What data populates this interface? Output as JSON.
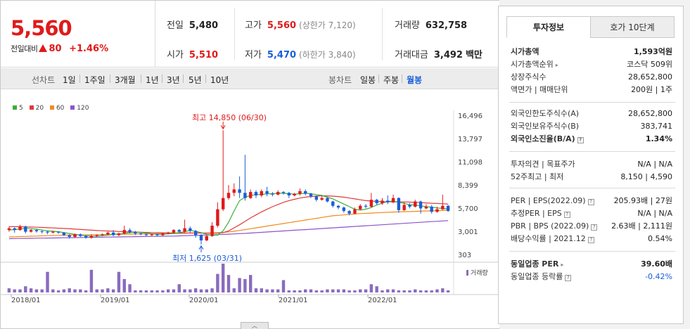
{
  "price": {
    "current": "5,560",
    "change_label": "전일대비",
    "change_value": "80",
    "change_pct": "+1.46%"
  },
  "stats": {
    "prev": {
      "label": "전일",
      "value": "5,480"
    },
    "high": {
      "label": "고가",
      "value": "5,560",
      "sub": "(상한가 7,120)"
    },
    "volume": {
      "label": "거래량",
      "value": "632,758"
    },
    "open": {
      "label": "시가",
      "value": "5,510"
    },
    "low": {
      "label": "저가",
      "value": "5,470",
      "sub": "(하한가 3,840)"
    },
    "amount": {
      "label": "거래대금",
      "value": "3,492",
      "unit": "백만"
    }
  },
  "period_bar": {
    "line_label": "선차트",
    "line_items": [
      "1일",
      "1주일",
      "3개월",
      "1년",
      "3년",
      "5년",
      "10년"
    ],
    "candle_label": "봉차트",
    "candle_items": [
      "일봉",
      "주봉",
      "월봉"
    ],
    "active_candle": "월봉"
  },
  "chart_data": {
    "type": "candlestick",
    "legend": [
      "5",
      "20",
      "60",
      "120"
    ],
    "legend_colors": [
      "#3aae3a",
      "#e03a3a",
      "#f08a1e",
      "#8a55cc"
    ],
    "y_ticks": [
      "16,496",
      "13,797",
      "11,098",
      "8,399",
      "5,700",
      "3,001",
      "303"
    ],
    "x_ticks": [
      "2018/01",
      "2019/01",
      "2020/01",
      "2021/01",
      "2022/01"
    ],
    "max_annotation": "최고 14,850 (06/30)",
    "min_annotation": "최저 1,625 (03/31)",
    "volume_legend": "거래량",
    "candles": [
      [
        3300,
        3500,
        3700,
        3100
      ],
      [
        3500,
        3300,
        3600,
        3000
      ],
      [
        3300,
        3700,
        3900,
        3200
      ],
      [
        3700,
        3100,
        3800,
        2900
      ],
      [
        3100,
        3300,
        3400,
        3000
      ],
      [
        3300,
        3150,
        3400,
        3000
      ],
      [
        3150,
        3100,
        3300,
        2900
      ],
      [
        3100,
        3000,
        3200,
        2800
      ],
      [
        3000,
        3100,
        3200,
        2900
      ],
      [
        3100,
        3000,
        3150,
        2850
      ],
      [
        3000,
        2700,
        3050,
        2600
      ],
      [
        2700,
        2500,
        2800,
        2300
      ],
      [
        2500,
        2800,
        2900,
        2400
      ],
      [
        2800,
        2600,
        2900,
        2500
      ],
      [
        2600,
        2400,
        2700,
        2300
      ],
      [
        2400,
        2600,
        2800,
        2300
      ],
      [
        2600,
        2700,
        2800,
        2500
      ],
      [
        2700,
        2800,
        2900,
        2600
      ],
      [
        2800,
        3000,
        3100,
        2700
      ],
      [
        3000,
        2700,
        3300,
        2600
      ],
      [
        2700,
        2900,
        3000,
        2600
      ],
      [
        2900,
        3300,
        3800,
        2800
      ],
      [
        3300,
        3100,
        3500,
        2900
      ],
      [
        3100,
        2900,
        3200,
        2700
      ],
      [
        2900,
        2800,
        3000,
        2700
      ],
      [
        2800,
        2700,
        2900,
        2600
      ],
      [
        2700,
        2800,
        2900,
        2600
      ],
      [
        2800,
        2700,
        2900,
        2600
      ],
      [
        2700,
        2900,
        3000,
        2600
      ],
      [
        2900,
        3000,
        3100,
        2800
      ],
      [
        3000,
        3300,
        3400,
        2900
      ],
      [
        3300,
        3100,
        3400,
        3000
      ],
      [
        3100,
        3500,
        4500,
        3000
      ],
      [
        3500,
        3200,
        3700,
        3000
      ],
      [
        3200,
        2700,
        3300,
        2400
      ],
      [
        2700,
        2100,
        2800,
        1625
      ],
      [
        2100,
        2600,
        2700,
        2000
      ],
      [
        2600,
        3800,
        4200,
        2500
      ],
      [
        3800,
        5700,
        6500,
        3600
      ],
      [
        5700,
        7000,
        14850,
        5500
      ],
      [
        7000,
        7600,
        8500,
        6800
      ],
      [
        7600,
        8000,
        8700,
        7200
      ],
      [
        8000,
        7600,
        9500,
        7000
      ],
      [
        7600,
        7000,
        12000,
        6700
      ],
      [
        7000,
        7700,
        8000,
        6900
      ],
      [
        7700,
        7300,
        7900,
        7000
      ],
      [
        7300,
        7800,
        8000,
        7100
      ],
      [
        7800,
        7500,
        8300,
        7200
      ],
      [
        7500,
        7400,
        7700,
        7200
      ],
      [
        7400,
        7700,
        7900,
        7300
      ],
      [
        7700,
        7600,
        7800,
        7400
      ],
      [
        7600,
        7300,
        7700,
        7000
      ],
      [
        7300,
        7500,
        7600,
        7200
      ],
      [
        7500,
        7800,
        8100,
        7300
      ],
      [
        7800,
        7500,
        8000,
        7300
      ],
      [
        7500,
        7200,
        7600,
        7000
      ],
      [
        7200,
        6800,
        7300,
        6600
      ],
      [
        6800,
        7000,
        7200,
        6700
      ],
      [
        7000,
        6600,
        7100,
        6500
      ],
      [
        6600,
        6100,
        6700,
        5900
      ],
      [
        6100,
        5900,
        6200,
        5700
      ],
      [
        5900,
        5500,
        6000,
        5300
      ],
      [
        5500,
        5200,
        5600,
        5000
      ],
      [
        5200,
        5700,
        5900,
        5100
      ],
      [
        5700,
        6100,
        6300,
        5600
      ],
      [
        6100,
        6000,
        6300,
        5800
      ],
      [
        6000,
        6800,
        7600,
        5900
      ],
      [
        6800,
        6400,
        6900,
        6200
      ],
      [
        6400,
        6700,
        7000,
        6200
      ],
      [
        6700,
        6500,
        7300,
        6300
      ],
      [
        6500,
        7000,
        7400,
        6400
      ],
      [
        7000,
        5600,
        7100,
        5300
      ],
      [
        5600,
        6200,
        6500,
        5500
      ],
      [
        6200,
        6000,
        6400,
        5800
      ],
      [
        6000,
        6600,
        6800,
        5900
      ],
      [
        6600,
        5800,
        6700,
        5200
      ],
      [
        5800,
        6000,
        6300,
        5700
      ],
      [
        6000,
        5400,
        6200,
        5200
      ],
      [
        5400,
        5700,
        6000,
        5300
      ],
      [
        5700,
        6100,
        7400,
        5600
      ],
      [
        6100,
        5500,
        6200,
        5400
      ]
    ],
    "ma5": [
      3300,
      3350,
      3400,
      3500,
      3450,
      3400,
      3300,
      3200,
      3150,
      3100,
      3000,
      2900,
      2800,
      2700,
      2650,
      2600,
      2600,
      2650,
      2700,
      2800,
      2850,
      2900,
      3000,
      3050,
      3000,
      2950,
      2850,
      2800,
      2800,
      2850,
      2900,
      3000,
      3100,
      3250,
      3150,
      3000,
      2800,
      2700,
      2700,
      3200,
      4200,
      5500,
      6700,
      7100,
      7300,
      7400,
      7400,
      7500,
      7500,
      7550,
      7550,
      7500,
      7450,
      7500,
      7550,
      7500,
      7400,
      7300,
      7100,
      6900,
      6600,
      6300,
      6000,
      5700,
      5600,
      5700,
      5900,
      6200,
      6400,
      6600,
      6650,
      6500,
      6400,
      6200,
      6200,
      6100,
      6000,
      5950,
      5850,
      5800,
      5750
    ],
    "ma20": [
      3700,
      3690,
      3680,
      3660,
      3640,
      3620,
      3600,
      3570,
      3540,
      3510,
      3480,
      3440,
      3400,
      3360,
      3320,
      3280,
      3240,
      3210,
      3180,
      3160,
      3130,
      3100,
      3080,
      3060,
      3040,
      3020,
      3000,
      2990,
      2980,
      2970,
      2960,
      2950,
      2950,
      2960,
      2960,
      2950,
      2930,
      2920,
      2930,
      3000,
      3200,
      3550,
      3900,
      4300,
      4700,
      5050,
      5400,
      5700,
      6000,
      6250,
      6500,
      6700,
      6850,
      7000,
      7100,
      7180,
      7230,
      7260,
      7250,
      7220,
      7170,
      7100,
      7000,
      6900,
      6800,
      6700,
      6650,
      6600,
      6580,
      6570,
      6560,
      6560,
      6550,
      6530,
      6500,
      6470,
      6440,
      6400,
      6370,
      6340,
      6300
    ],
    "ma60": [
      2500,
      2520,
      2540,
      2560,
      2580,
      2600,
      2620,
      2640,
      2660,
      2680,
      2700,
      2710,
      2720,
      2730,
      2740,
      2750,
      2760,
      2770,
      2780,
      2790,
      2800,
      2810,
      2820,
      2830,
      2840,
      2850,
      2860,
      2870,
      2880,
      2890,
      2900,
      2910,
      2920,
      2930,
      2940,
      2950,
      2960,
      2970,
      2990,
      3020,
      3080,
      3160,
      3250,
      3350,
      3450,
      3550,
      3650,
      3750,
      3850,
      3950,
      4050,
      4150,
      4250,
      4350,
      4450,
      4550,
      4650,
      4750,
      4850,
      4950,
      5000,
      5050,
      5100,
      5150,
      5200,
      5230,
      5260,
      5290,
      5320,
      5350,
      5380,
      5400,
      5420,
      5440,
      5460,
      5480,
      5500,
      5520,
      5540,
      5560,
      5580
    ],
    "ma120": [
      2300,
      2310,
      2320,
      2330,
      2340,
      2350,
      2360,
      2370,
      2380,
      2390,
      2400,
      2410,
      2420,
      2430,
      2440,
      2450,
      2460,
      2470,
      2480,
      2490,
      2500,
      2510,
      2520,
      2530,
      2540,
      2550,
      2560,
      2570,
      2580,
      2590,
      2600,
      2620,
      2640,
      2660,
      2680,
      2700,
      2720,
      2740,
      2760,
      2790,
      2820,
      2850,
      2880,
      2910,
      2950,
      2990,
      3030,
      3070,
      3110,
      3150,
      3190,
      3230,
      3270,
      3310,
      3350,
      3390,
      3430,
      3470,
      3510,
      3550,
      3590,
      3630,
      3670,
      3710,
      3750,
      3790,
      3830,
      3870,
      3910,
      3950,
      3990,
      4030,
      4070,
      4110,
      4150,
      4190,
      4230,
      4270,
      4310,
      4350,
      4390
    ],
    "volumes": [
      4,
      3,
      3,
      6,
      4,
      3,
      3,
      2,
      3,
      2,
      3,
      4,
      3,
      3,
      2,
      3,
      3,
      3,
      4,
      3,
      3,
      3,
      3,
      2,
      2,
      2,
      2,
      2,
      2,
      3,
      3,
      4,
      3,
      3,
      4,
      3,
      3,
      4,
      6,
      9,
      5,
      4,
      3,
      3,
      5,
      4,
      4,
      3,
      3,
      3,
      3,
      2,
      2,
      2,
      3,
      3,
      2,
      2,
      3,
      3,
      3,
      3,
      2,
      2,
      3,
      3,
      3,
      2,
      2,
      3,
      3,
      2,
      2,
      2,
      3,
      2,
      2,
      2,
      3,
      3,
      2
    ],
    "volume_spikes": {
      "7": 20,
      "15": 22,
      "20": 20,
      "21": 13,
      "22": 8,
      "31": 8,
      "38": 18,
      "39": 28,
      "40": 17,
      "42": 14,
      "43": 13,
      "44": 17,
      "50": 12,
      "66": 8,
      "67": 6,
      "79": 4
    },
    "y_min": 303,
    "y_max": 16496
  },
  "tabs": {
    "active": "투자정보",
    "inactive": "호가 10단계"
  },
  "info": {
    "market_cap": {
      "label": "시가총액",
      "value": "1,593억원"
    },
    "market_rank": {
      "label": "시가총액순위",
      "value": "코스닥 509위"
    },
    "shares": {
      "label": "상장주식수",
      "value": "28,652,800"
    },
    "par_label": "액면가 | 매매단위",
    "par_value": "200원 | 1주",
    "foreign_limit": {
      "label": "외국인한도주식수(A)",
      "value": "28,652,800"
    },
    "foreign_hold": {
      "label": "외국인보유주식수(B)",
      "value": "383,741"
    },
    "foreign_ratio": {
      "label": "외국인소진율(B/A)",
      "value": "1.34%"
    },
    "opinion_label": "투자의견 | 목표주가",
    "opinion_value": "N/A | N/A",
    "week52_label": "52주최고 | 최저",
    "week52_value": "8,150 | 4,590",
    "per_label": "PER | EPS(2022.09)",
    "per_value": "205.93배 | 27원",
    "est_per_label": "추정PER | EPS",
    "est_per_value": "N/A | N/A",
    "pbr_label": "PBR | BPS (2022.09)",
    "pbr_value": "2.63배 | 2,111원",
    "dividend_label": "배당수익률 | 2021.12",
    "dividend_value": "0.54%",
    "sector_per": {
      "label": "동일업종 PER",
      "value": "39.60배"
    },
    "sector_change": {
      "label": "동일업종 등락률",
      "value": "-0.42%"
    }
  },
  "colors": {
    "up": "#e01a1a",
    "down": "#1a5ed9",
    "volume": "#8a6bbd"
  }
}
